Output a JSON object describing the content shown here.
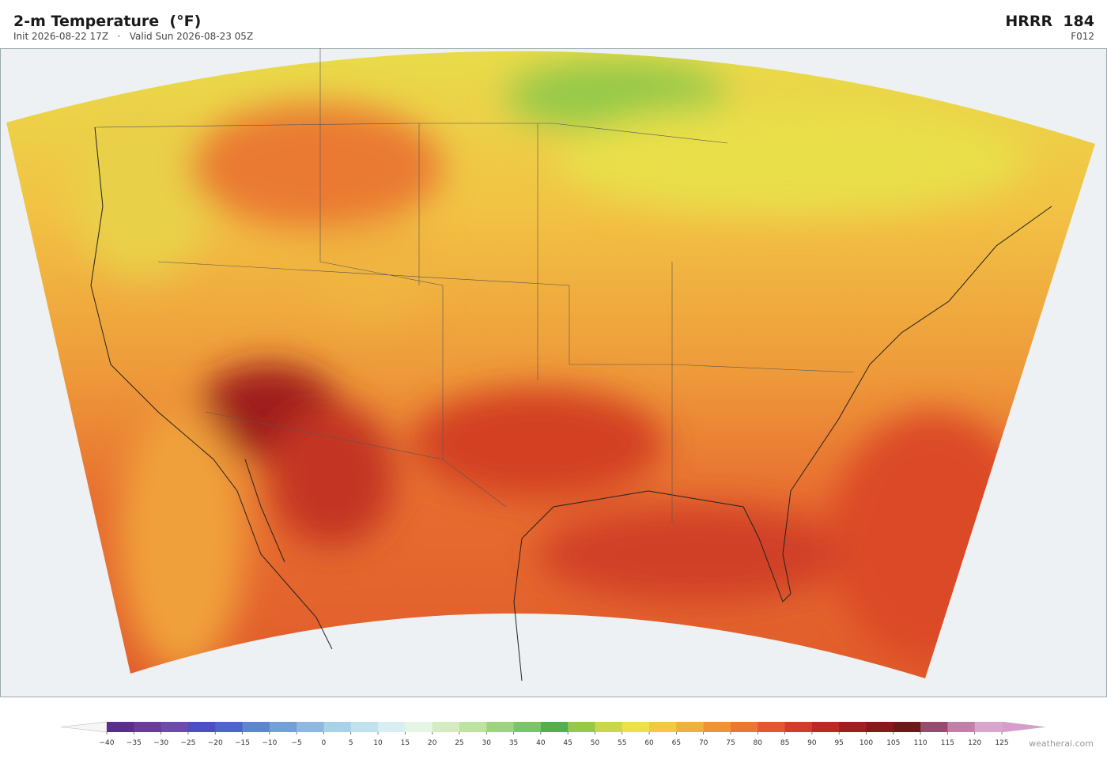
{
  "header": {
    "title": "2-m Temperature  (°F)",
    "subtitle": "Init 2026-08-22 17Z   ·   Valid Sun 2026-08-23 05Z",
    "model": "HRRR  184",
    "forecast_hour": "F012"
  },
  "colorbar": {
    "ticks": [
      {
        "value": -40,
        "label": "−40"
      },
      {
        "value": -35,
        "label": "−35"
      },
      {
        "value": -30,
        "label": "−30"
      },
      {
        "value": -25,
        "label": "−25"
      },
      {
        "value": -20,
        "label": "−20"
      },
      {
        "value": -15,
        "label": "−15"
      },
      {
        "value": -10,
        "label": "−10"
      },
      {
        "value": -5,
        "label": "−5"
      },
      0,
      5,
      10,
      15,
      20,
      25,
      30,
      35,
      40,
      45,
      50,
      55,
      60,
      65,
      70,
      75,
      80,
      85,
      90,
      95,
      100,
      105,
      110,
      115,
      120,
      125
    ],
    "colors": [
      "#5a2d91",
      "#6a3a9e",
      "#6e4ab0",
      "#4a4fc2",
      "#4d65c9",
      "#5c86d2",
      "#74a0d8",
      "#8db9e0",
      "#a8d2e8",
      "#c0e2ef",
      "#d8eff2",
      "#e6f5e6",
      "#d5ecc2",
      "#bde3a0",
      "#9fd47e",
      "#7cc565",
      "#52b04a",
      "#96c84a",
      "#c9d84a",
      "#ede04a",
      "#f4c844",
      "#f2ae3e",
      "#ee9438",
      "#e97833",
      "#e25a2b",
      "#d03f25",
      "#bb2a22",
      "#9e1f1f",
      "#861a1a",
      "#701818",
      "#9a4a6e",
      "#c080a8",
      "#d8a6cc"
    ],
    "under_color": "#f6f6f6",
    "over_color": "#d79ccb"
  },
  "watermark": "weatherai.com"
}
